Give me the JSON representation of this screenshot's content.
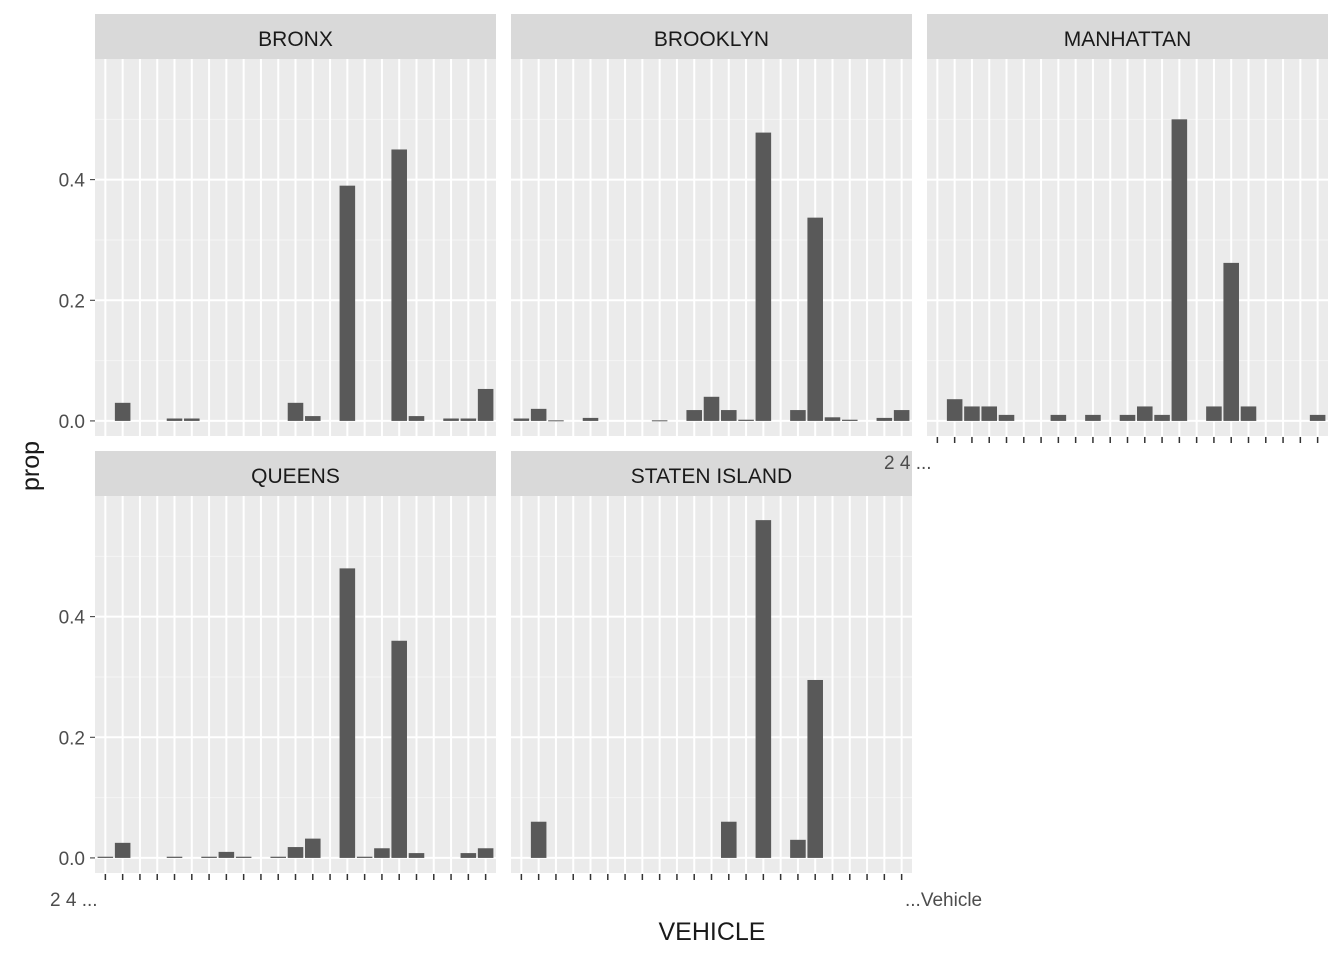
{
  "chart_data": {
    "type": "bar",
    "facet_by": "borough",
    "xlabel": "VEHICLE",
    "ylabel": "prop",
    "ylim": [
      -0.025,
      0.6
    ],
    "yticks": [
      0.0,
      0.2,
      0.4
    ],
    "ytick_labels": [
      "0.0",
      "0.2",
      "0.4"
    ],
    "grid": true,
    "x_tick_label_samples": {
      "bottom_left_panel": "2 4 ...",
      "bottom_right_panel_end": "...Vehicle",
      "right_panel": "2 4 ..."
    },
    "category_count": 23,
    "panels": [
      {
        "name": "BRONX",
        "values": [
          0,
          0.03,
          0,
          0,
          0.004,
          0.004,
          0,
          0,
          0,
          0,
          0,
          0.03,
          0.008,
          0,
          0.39,
          0,
          0,
          0.45,
          0.008,
          0,
          0.004,
          0.004,
          0.053
        ]
      },
      {
        "name": "BROOKLYN",
        "values": [
          0.004,
          0.02,
          0.001,
          0,
          0.005,
          0,
          0,
          0,
          0.001,
          0,
          0.018,
          0.04,
          0.018,
          0.002,
          0.478,
          0,
          0.018,
          0.337,
          0.006,
          0.002,
          0,
          0.005,
          0.018
        ]
      },
      {
        "name": "MANHATTAN",
        "values": [
          0,
          0.036,
          0.024,
          0.024,
          0.01,
          0,
          0,
          0.01,
          0,
          0.01,
          0,
          0.01,
          0.024,
          0.01,
          0.5,
          0,
          0.024,
          0.262,
          0.024,
          0,
          0,
          0,
          0.01
        ]
      },
      {
        "name": "QUEENS",
        "values": [
          0.002,
          0.025,
          0,
          0,
          0.002,
          0,
          0.002,
          0.01,
          0.002,
          0,
          0.002,
          0.018,
          0.032,
          0,
          0.48,
          0.002,
          0.016,
          0.36,
          0.008,
          0,
          0,
          0.008,
          0.016
        ]
      },
      {
        "name": "STATEN ISLAND",
        "values": [
          0,
          0.06,
          0,
          0,
          0,
          0,
          0,
          0,
          0,
          0,
          0,
          0,
          0.06,
          0,
          0.56,
          0,
          0.03,
          0.295,
          0,
          0,
          0,
          0,
          0
        ]
      }
    ]
  },
  "colors": {
    "panel_bg": "#ebebeb",
    "strip_bg": "#d9d9d9",
    "grid_major": "#ffffff",
    "bar_fill": "#595959",
    "text_dark": "#1a1a1a",
    "tick_text": "#4d4d4d"
  }
}
